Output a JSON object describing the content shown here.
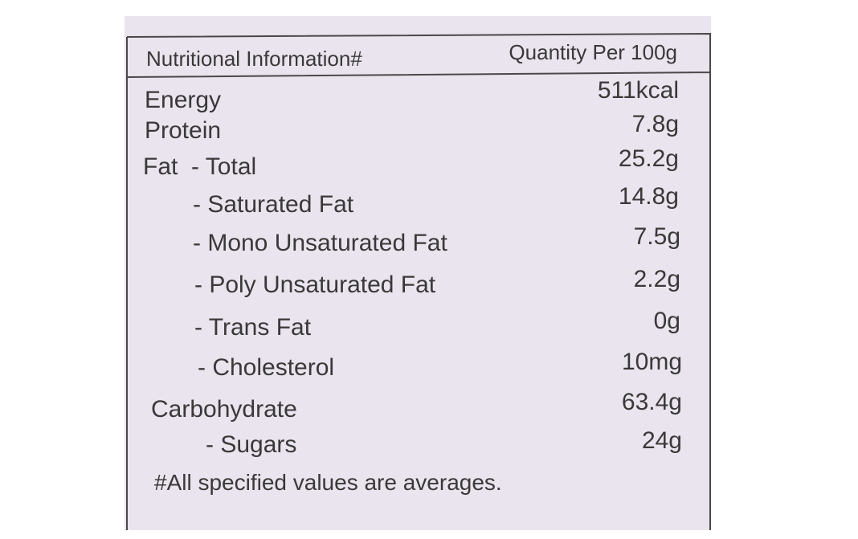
{
  "header": {
    "label": "Nutritional Information#",
    "quantity": "Quantity Per 100g"
  },
  "rows": [
    {
      "label": "Energy",
      "value": "511kcal"
    },
    {
      "label": "Protein",
      "value": "7.8g"
    },
    {
      "label": "Fat  - Total",
      "value": "25.2g"
    },
    {
      "label": "- Saturated Fat",
      "value": "14.8g"
    },
    {
      "label": "- Mono Unsaturated Fat",
      "value": "7.5g"
    },
    {
      "label": "- Poly Unsaturated Fat",
      "value": "2.2g"
    },
    {
      "label": "- Trans Fat",
      "value": "0g"
    },
    {
      "label": "- Cholesterol",
      "value": "10mg"
    },
    {
      "label": "Carbohydrate",
      "value": "63.4g"
    },
    {
      "label": "- Sugars",
      "value": "24g"
    }
  ],
  "footnote": "#All specified values are averages."
}
